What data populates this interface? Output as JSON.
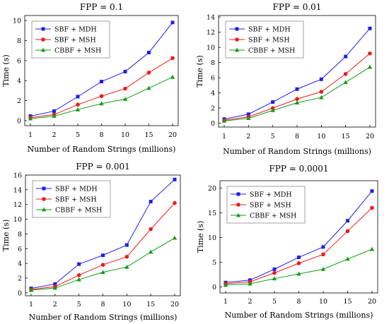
{
  "colors": {
    "mdh": "#1f1fe6",
    "msh": "#ee1c1c",
    "cbbf": "#169c16"
  },
  "chart_data": [
    {
      "type": "line",
      "title": "FPP = 0.1",
      "xlabel": "Number of Random Strings (millions)",
      "ylabel": "Time (s)",
      "categories": [
        "1",
        "2",
        "5",
        "8",
        "10",
        "15",
        "20"
      ],
      "ylim": [
        -0.5,
        10.5
      ],
      "yticks": [
        0,
        2,
        4,
        6,
        8,
        10
      ],
      "legend_position": "top-left",
      "series": [
        {
          "name": "SBF + MDH",
          "color_key": "mdh",
          "marker": "square",
          "values": [
            0.45,
            0.95,
            2.4,
            3.9,
            4.9,
            6.8,
            9.8
          ]
        },
        {
          "name": "SBF + MSH",
          "color_key": "msh",
          "marker": "circle",
          "values": [
            0.3,
            0.6,
            1.6,
            2.45,
            3.2,
            4.8,
            6.25
          ]
        },
        {
          "name": "CBBF + MSH",
          "color_key": "cbbf",
          "marker": "triangle",
          "values": [
            0.2,
            0.45,
            1.1,
            1.7,
            2.15,
            3.25,
            4.35
          ]
        }
      ]
    },
    {
      "type": "line",
      "title": "FPP = 0.01",
      "xlabel": "Number of Random Strings (millions)",
      "ylabel": "Time (s)",
      "categories": [
        "1",
        "2",
        "5",
        "8",
        "10",
        "15",
        "20"
      ],
      "ylim": [
        -0.5,
        14.2
      ],
      "yticks": [
        0,
        2,
        4,
        6,
        8,
        10,
        12,
        14
      ],
      "legend_position": "top-left",
      "series": [
        {
          "name": "SBF + MDH",
          "color_key": "mdh",
          "marker": "square",
          "values": [
            0.55,
            1.2,
            2.8,
            4.5,
            5.8,
            8.8,
            12.5
          ]
        },
        {
          "name": "SBF + MSH",
          "color_key": "msh",
          "marker": "circle",
          "values": [
            0.4,
            0.85,
            2.0,
            3.2,
            4.15,
            6.5,
            9.2
          ]
        },
        {
          "name": "CBBF + MSH",
          "color_key": "cbbf",
          "marker": "triangle",
          "values": [
            0.3,
            0.65,
            1.7,
            2.7,
            3.4,
            5.4,
            7.4
          ]
        }
      ]
    },
    {
      "type": "line",
      "title": "FPP = 0.001",
      "xlabel": "Number of Random Strings (millions)",
      "ylabel": "Time (s)",
      "categories": [
        "1",
        "2",
        "5",
        "8",
        "10",
        "15",
        "20"
      ],
      "ylim": [
        -0.4,
        16
      ],
      "yticks": [
        0,
        2,
        4,
        6,
        8,
        10,
        12,
        14,
        16
      ],
      "legend_position": "top-left",
      "series": [
        {
          "name": "SBF + MDH",
          "color_key": "mdh",
          "marker": "square",
          "values": [
            0.6,
            1.2,
            3.9,
            5.1,
            6.5,
            12.4,
            15.4
          ]
        },
        {
          "name": "SBF + MSH",
          "color_key": "msh",
          "marker": "circle",
          "values": [
            0.45,
            0.85,
            2.4,
            3.8,
            4.9,
            8.65,
            12.2
          ]
        },
        {
          "name": "CBBF + MSH",
          "color_key": "cbbf",
          "marker": "triangle",
          "values": [
            0.35,
            0.65,
            1.8,
            2.8,
            3.5,
            5.55,
            7.45
          ]
        }
      ]
    },
    {
      "type": "line",
      "title": "FPP = 0.0001",
      "xlabel": "Number of Random Strings (millions)",
      "ylabel": "Time (s)",
      "categories": [
        "1",
        "2",
        "5",
        "8",
        "10",
        "15",
        "20"
      ],
      "ylim": [
        -1.2,
        21.5
      ],
      "yticks": [
        0,
        5,
        10,
        15,
        20
      ],
      "legend_position": "top-left",
      "series": [
        {
          "name": "SBF + MDH",
          "color_key": "mdh",
          "marker": "square",
          "values": [
            0.9,
            1.4,
            3.6,
            6.0,
            8.1,
            13.4,
            19.4
          ]
        },
        {
          "name": "SBF + MSH",
          "color_key": "msh",
          "marker": "circle",
          "values": [
            0.65,
            1.05,
            2.85,
            4.8,
            6.6,
            11.3,
            16.0
          ]
        },
        {
          "name": "CBBF + MSH",
          "color_key": "cbbf",
          "marker": "triangle",
          "values": [
            0.4,
            0.65,
            1.7,
            2.65,
            3.6,
            5.65,
            7.65
          ]
        }
      ]
    }
  ]
}
